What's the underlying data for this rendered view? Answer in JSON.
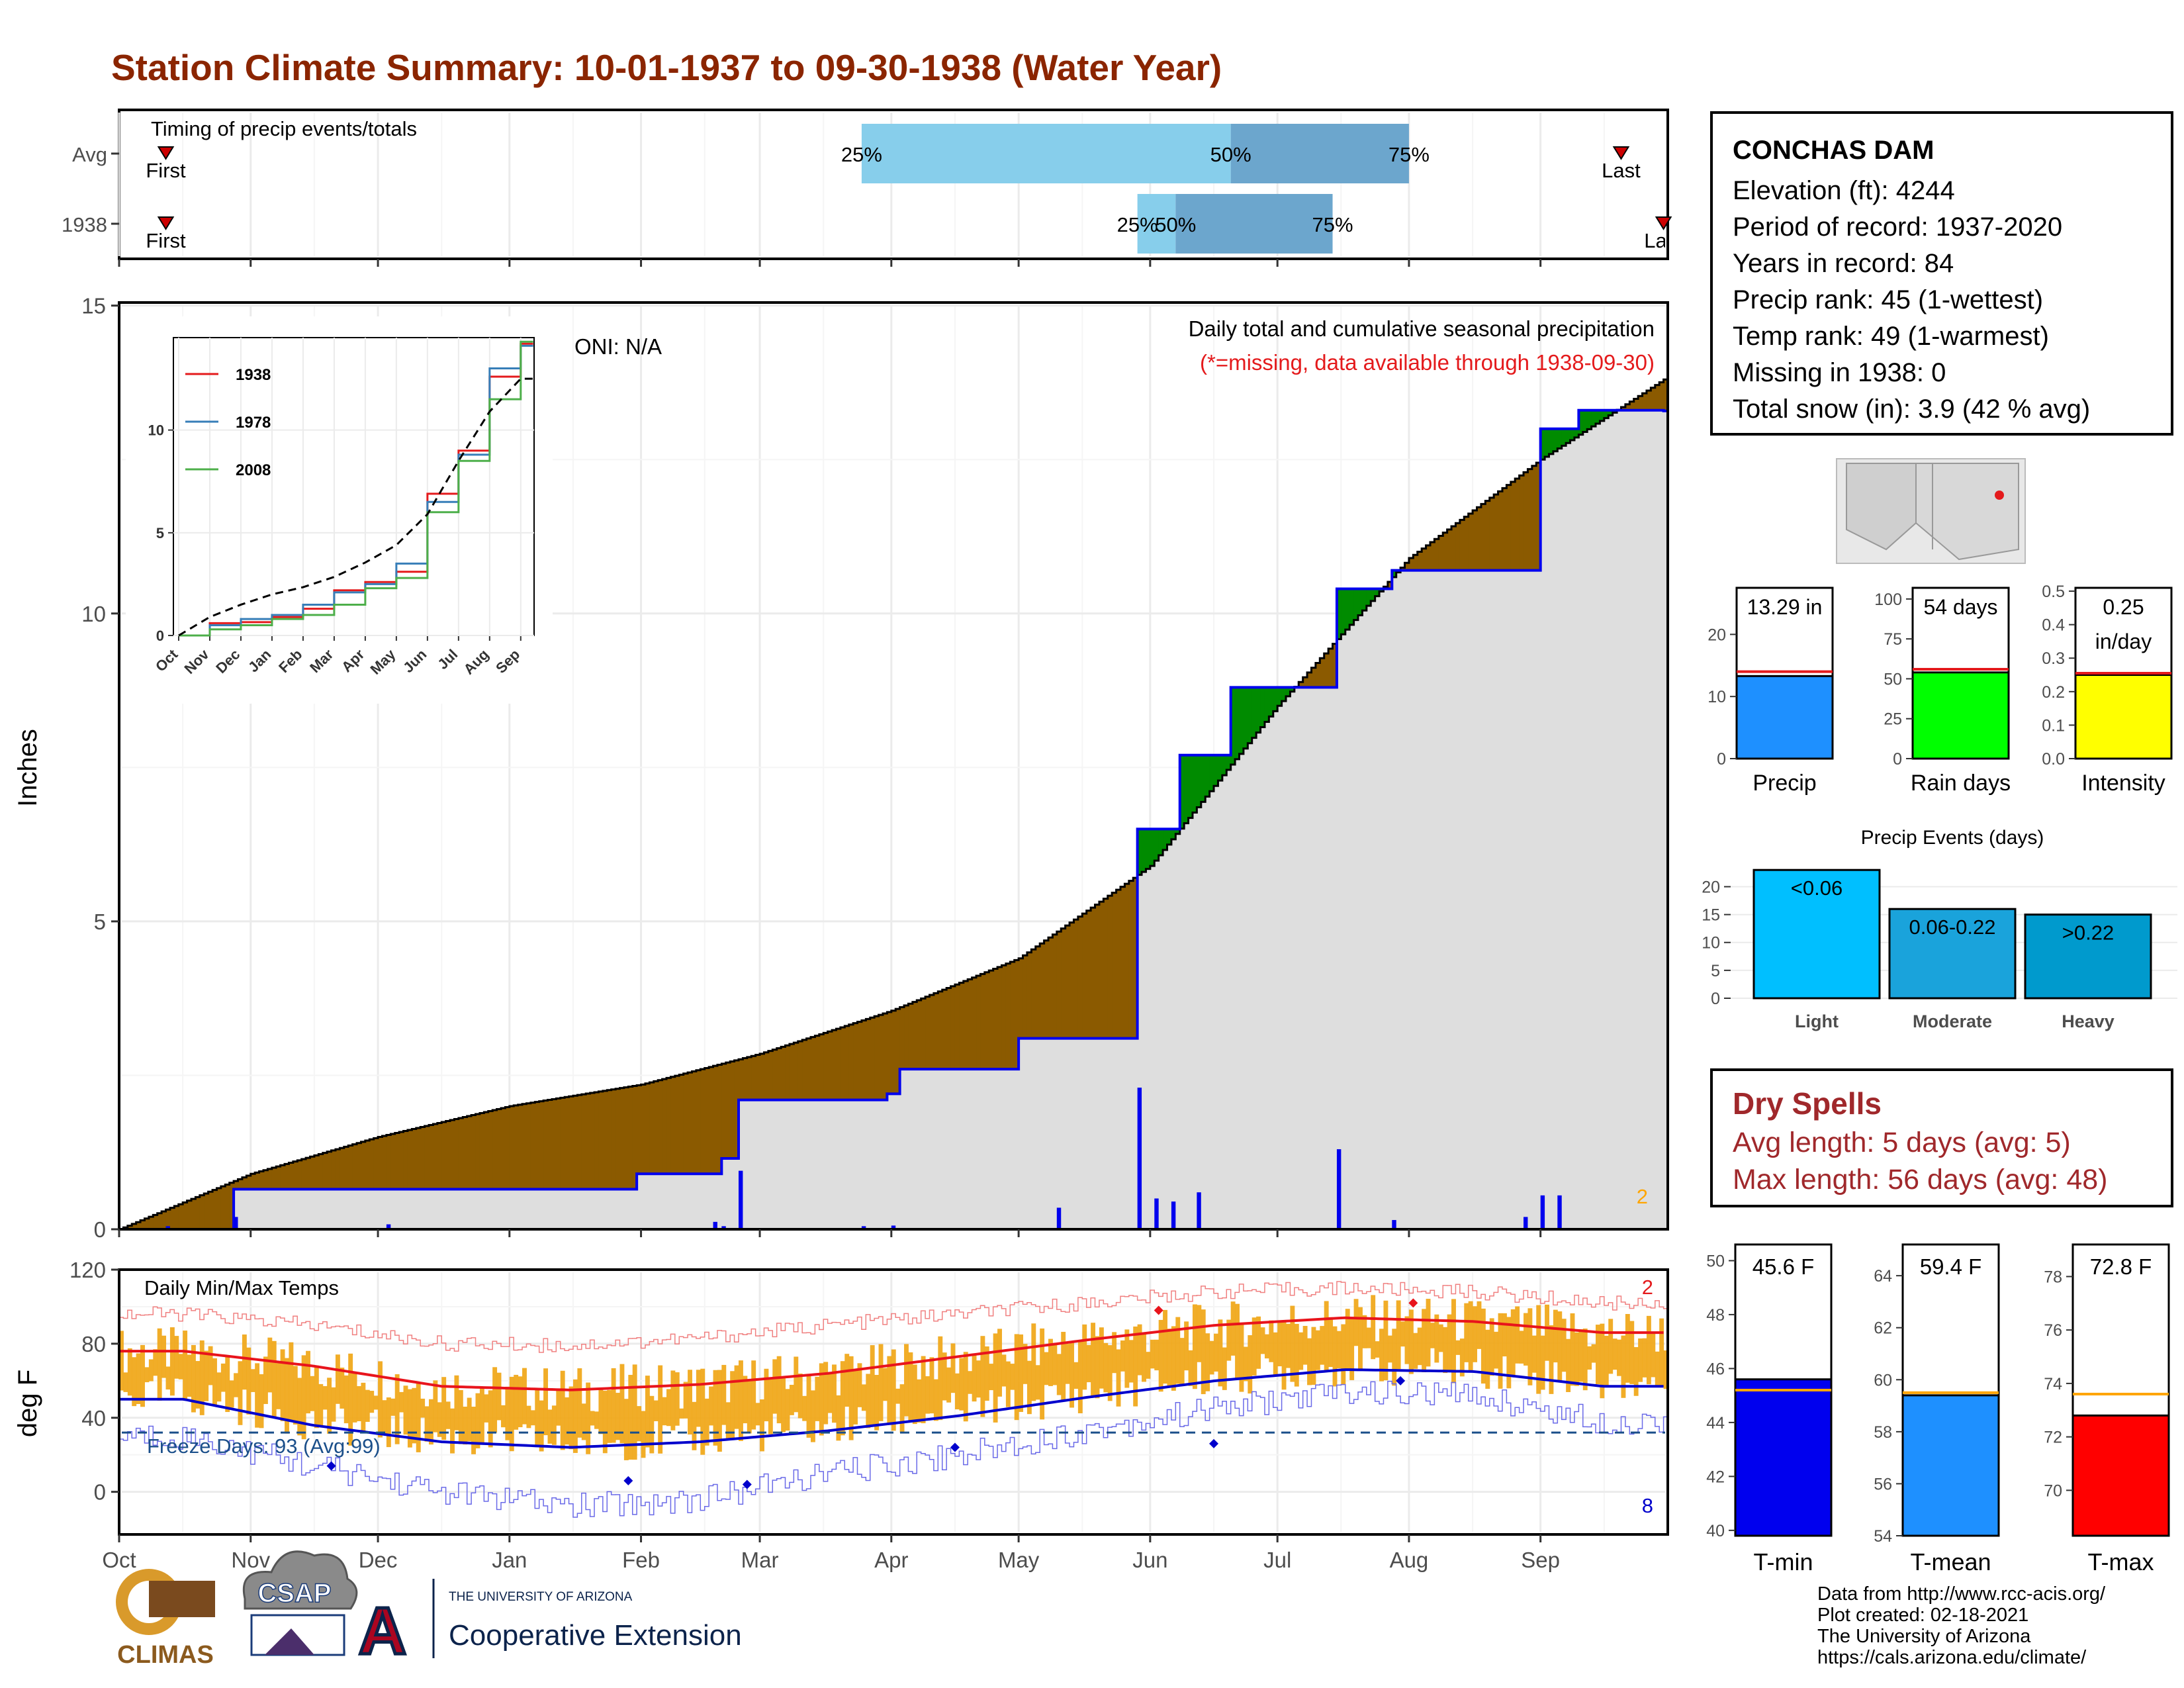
{
  "title": "Station Climate Summary: 10-01-1937 to 09-30-1938 (Water Year)",
  "timing": {
    "label": "Timing of precip events/totals",
    "rows": [
      {
        "name": "Avg",
        "first_label": "First",
        "last_label": "Last",
        "p25": "25%",
        "p50": "50%",
        "p75": "75%",
        "p25_date": "1938-03-25",
        "p50_date": "1938-06-20",
        "p75_date": "1938-08-01",
        "first_date": "1937-10-12",
        "last_date": "1938-09-20"
      },
      {
        "name": "1938",
        "first_label": "First",
        "last_label": "Last",
        "p25": "25%",
        "p50": "50%",
        "p75": "75%",
        "p25_date": "1938-05-29",
        "p50_date": "1938-06-07",
        "p75_date": "1938-07-14",
        "first_date": "1937-10-12",
        "last_date": "1938-09-30"
      }
    ]
  },
  "station": {
    "name": "CONCHAS DAM",
    "lines": [
      "Elevation (ft): 4244",
      "Period of record: 1937-2020",
      "Years in record: 84",
      "Precip rank: 45 (1-wettest)",
      "Temp rank: 49 (1-warmest)",
      "Missing in 1938: 0",
      "Total snow (in): 3.9 (42 % avg)"
    ]
  },
  "precip_panel": {
    "ylabel": "Inches",
    "header": "Daily total and cumulative seasonal precipitation",
    "missing_note": "(*=missing, data available through 1938-09-30)",
    "oni": "ONI: N/A",
    "corner_count": "2",
    "yticks": [
      "0",
      "5",
      "10",
      "15"
    ]
  },
  "months": [
    "Oct",
    "Nov",
    "Dec",
    "Jan",
    "Feb",
    "Mar",
    "Apr",
    "May",
    "Jun",
    "Jul",
    "Aug",
    "Sep"
  ],
  "inset": {
    "legend": [
      "1938",
      "1978",
      "2008"
    ],
    "yticks": [
      "0",
      "5",
      "10"
    ],
    "colors": {
      "1938": "#E41A1C",
      "1978": "#377EB8",
      "2008": "#4DAF4A"
    }
  },
  "temp_panel": {
    "ylabel": "deg F",
    "label": "Daily Min/Max Temps",
    "freeze": "Freeze Days: 93 (Avg:99)",
    "count_high": "2",
    "count_low": "8",
    "yticks": [
      "0",
      "40",
      "80",
      "120"
    ]
  },
  "mini_bars": {
    "precip": {
      "label": "Precip",
      "value_text": "13.29 in",
      "value": 13.29,
      "avg": 14.0,
      "ticks": [
        "0",
        "10",
        "20"
      ]
    },
    "rain": {
      "label": "Rain days",
      "value_text": "54 days",
      "value": 54,
      "avg": 56,
      "ticks": [
        "0",
        "25",
        "50",
        "75",
        "100"
      ]
    },
    "intensity": {
      "label": "Intensity",
      "value_text1": "0.25",
      "value_text2": "in/day",
      "value": 0.25,
      "avg": 0.255,
      "ticks": [
        "0.0",
        "0.1",
        "0.2",
        "0.3",
        "0.4",
        "0.5"
      ]
    }
  },
  "events": {
    "title": "Precip Events (days)",
    "yticks": [
      "0",
      "5",
      "10",
      "15",
      "20"
    ],
    "bars": [
      {
        "name": "Light",
        "label": "<0.06",
        "value": 23
      },
      {
        "name": "Moderate",
        "label": "0.06-0.22",
        "value": 16
      },
      {
        "name": "Heavy",
        "label": ">0.22",
        "value": 15
      }
    ]
  },
  "dry_spells": {
    "title": "Dry Spells",
    "avg_line": "Avg length: 5 days (avg: 5)",
    "max_line": "Max length: 56 days (avg: 48)"
  },
  "temp_bars": {
    "tmin": {
      "label": "T-min",
      "value_text": "45.6 F",
      "value": 45.6,
      "avg": 45.2,
      "ticks": [
        "40",
        "42",
        "44",
        "46",
        "48",
        "50"
      ]
    },
    "tmean": {
      "label": "T-mean",
      "value_text": "59.4 F",
      "value": 59.4,
      "avg": 59.5,
      "ticks": [
        "54",
        "56",
        "58",
        "60",
        "62",
        "64"
      ]
    },
    "tmax": {
      "label": "T-max",
      "value_text": "72.8 F",
      "value": 72.8,
      "avg": 73.6,
      "ticks": [
        "70",
        "72",
        "74",
        "76",
        "78"
      ]
    }
  },
  "logos": {
    "climas": "CLIMAS",
    "csap": "CSAP",
    "univ": "THE UNIVERSITY OF ARIZONA",
    "coop": "Cooperative Extension"
  },
  "credits": [
    "Data from http://www.rcc-acis.org/",
    "Plot created: 02-18-2021",
    "The University of Arizona",
    "https://cals.arizona.edu/climate/"
  ],
  "chart_data": [
    {
      "type": "area",
      "title": "Daily total and cumulative seasonal precipitation",
      "xlabel": "",
      "ylabel": "Inches",
      "ylim": [
        0,
        15
      ],
      "series": [
        {
          "name": "1938",
          "x": [
            "1937-10-01",
            "1937-10-28",
            "1937-11-30",
            "1938-01-31",
            "1938-02-20",
            "1938-02-24",
            "1938-03-31",
            "1938-04-03",
            "1938-05-01",
            "1938-05-29",
            "1938-06-08",
            "1938-06-20",
            "1938-07-15",
            "1938-07-28",
            "1938-08-20",
            "1938-09-01",
            "1938-09-10",
            "1938-09-30"
          ],
          "values": [
            0.0,
            0.65,
            0.65,
            0.9,
            1.15,
            2.1,
            2.2,
            2.6,
            3.1,
            6.5,
            7.7,
            8.8,
            10.4,
            10.7,
            10.7,
            13.0,
            13.3,
            13.29
          ]
        },
        {
          "name": "Avg",
          "x": [
            "1937-10-01",
            "1937-11-01",
            "1937-12-01",
            "1938-01-01",
            "1938-02-01",
            "1938-03-01",
            "1938-04-01",
            "1938-05-01",
            "1938-06-01",
            "1938-07-01",
            "1938-08-01",
            "1938-09-01",
            "1938-09-30"
          ],
          "values": [
            0.0,
            0.9,
            1.5,
            2.0,
            2.35,
            2.85,
            3.55,
            4.4,
            5.9,
            8.5,
            10.9,
            12.5,
            13.8
          ]
        }
      ],
      "daily_precip": {
        "x": [
          "1937-10-12",
          "1937-10-28",
          "1937-12-03",
          "1938-02-18",
          "1938-02-20",
          "1938-02-24",
          "1938-03-25",
          "1938-04-01",
          "1938-05-10",
          "1938-05-29",
          "1938-06-02",
          "1938-06-06",
          "1938-06-12",
          "1938-07-15",
          "1938-07-28",
          "1938-08-28",
          "1938-09-01",
          "1938-09-05"
        ],
        "values": [
          0.05,
          0.2,
          0.08,
          0.12,
          0.05,
          0.95,
          0.05,
          0.06,
          0.35,
          2.3,
          0.5,
          0.45,
          0.6,
          1.3,
          0.15,
          0.2,
          0.55,
          0.55
        ]
      }
    },
    {
      "type": "line",
      "title": "",
      "xlabel": "",
      "ylabel": "",
      "ylim": [
        0,
        14.5
      ],
      "categories": [
        "Oct",
        "Nov",
        "Dec",
        "Jan",
        "Feb",
        "Mar",
        "Apr",
        "May",
        "Jun",
        "Jul",
        "Aug",
        "Sep"
      ],
      "series": [
        {
          "name": "1938",
          "values": [
            0.0,
            0.6,
            0.65,
            0.9,
            1.3,
            2.2,
            2.6,
            3.1,
            6.9,
            9.0,
            12.6,
            14.2
          ]
        },
        {
          "name": "1978",
          "values": [
            0.0,
            0.5,
            0.8,
            1.0,
            1.5,
            2.1,
            2.5,
            3.5,
            6.5,
            8.8,
            13.0,
            14.1
          ]
        },
        {
          "name": "2008",
          "values": [
            0.0,
            0.3,
            0.5,
            0.8,
            1.0,
            1.5,
            2.3,
            2.8,
            6.0,
            8.5,
            11.5,
            14.3
          ]
        },
        {
          "name": "Avg",
          "values": [
            0.0,
            0.9,
            1.5,
            2.0,
            2.35,
            2.85,
            3.55,
            4.4,
            5.9,
            8.5,
            10.9,
            12.5
          ]
        }
      ]
    },
    {
      "type": "line",
      "title": "Daily Min/Max Temps",
      "xlabel": "",
      "ylabel": "deg F",
      "ylim": [
        -20,
        120
      ],
      "categories": [
        "Oct",
        "Nov",
        "Dec",
        "Jan",
        "Feb",
        "Mar",
        "Apr",
        "May",
        "Jun",
        "Jul",
        "Aug",
        "Sep"
      ],
      "series": [
        {
          "name": "Avg max",
          "values": [
            76,
            68,
            57,
            55,
            58,
            64,
            73,
            82,
            90,
            94,
            92,
            86
          ]
        },
        {
          "name": "Avg min",
          "values": [
            50,
            36,
            27,
            24,
            27,
            33,
            41,
            51,
            60,
            66,
            65,
            57
          ]
        },
        {
          "name": "Record max",
          "values": [
            96,
            90,
            80,
            79,
            83,
            90,
            96,
            102,
            108,
            110,
            108,
            102
          ]
        },
        {
          "name": "Record min",
          "values": [
            30,
            14,
            0,
            -8,
            -4,
            10,
            20,
            33,
            45,
            54,
            52,
            38
          ]
        }
      ],
      "freeze_line": 32
    }
  ]
}
